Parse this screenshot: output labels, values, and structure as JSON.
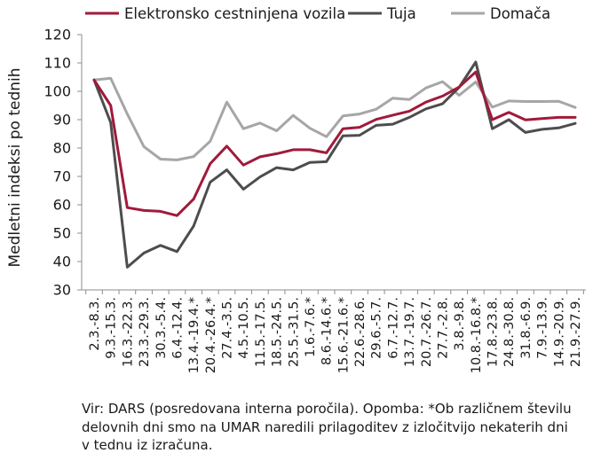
{
  "chart_data": {
    "type": "line",
    "ylabel": "Medletni indeksi po tednih",
    "xlabel": "",
    "ylim": [
      30,
      120
    ],
    "yticks": [
      30,
      40,
      50,
      60,
      70,
      80,
      90,
      100,
      110,
      120
    ],
    "grid": false,
    "legend_position": "top",
    "categories": [
      "2.3.-8.3.",
      "9.3.-15.3.",
      "16.3.-22.3.",
      "23.3.-29.3.",
      "30.3.-5.4.",
      "6.4.-12.4.",
      "13.4.-19.4.*",
      "20.4.-26.4.*",
      "27.4.-3.5.",
      "4.5.-10.5.",
      "11.5.-17.5.",
      "18.5.-24.5.",
      "25.5.-31.5.",
      "1.6.-7.6.*",
      "8.6.-14.6.*",
      "15.6.-21.6.*",
      "22.6.-28.6.",
      "29.6.-5.7.",
      "6.7.-12.7.",
      "13.7.-19.7.",
      "20.7.-26.7.",
      "27.7.-2.8.",
      "3.8.-9.8.",
      "10.8.-16.8.*",
      "17.8.-23.8.",
      "24.8.-30.8.",
      "31.8.-6.9.",
      "7.9.-13.9.",
      "14.9.-20.9.",
      "21.9.-27.9."
    ],
    "series": [
      {
        "name": "Elektronsko cestninjena vozila",
        "color": "#a01a3a",
        "values": [
          104,
          95,
          59,
          58,
          57.7,
          56.2,
          62,
          74.5,
          80.7,
          74,
          76.9,
          78,
          79.4,
          79.4,
          78.3,
          86.8,
          87.3,
          90.1,
          91.6,
          93,
          96.2,
          98.3,
          101.5,
          106.8,
          90,
          92.6,
          89.9,
          90.4,
          90.8,
          90.8
        ]
      },
      {
        "name": "Tuja",
        "color": "#4d4d4d",
        "values": [
          104,
          89,
          38,
          43,
          45.7,
          43.5,
          52.5,
          68,
          72.3,
          65.5,
          69.8,
          73.1,
          72.3,
          74.9,
          75.2,
          84.3,
          84.5,
          88,
          88.4,
          90.8,
          93.8,
          95.6,
          101.4,
          110.3,
          86.8,
          90,
          85.5,
          86.6,
          87.1,
          88.7
        ]
      },
      {
        "name": "Domača",
        "color": "#a6a6a6",
        "values": [
          104,
          104.6,
          92,
          80.5,
          76.1,
          75.8,
          77,
          82.4,
          96.2,
          86.8,
          88.8,
          86.1,
          91.5,
          87,
          84,
          91.3,
          92,
          93.7,
          97.6,
          97.1,
          101.2,
          103.4,
          98.6,
          103.3,
          94.4,
          96.6,
          96.4,
          96.4,
          96.5,
          94.3
        ]
      }
    ]
  },
  "source_note": "Vir: DARS (posredovana interna poročila). Opomba: *Ob različnem številu delovnih dni smo na UMAR naredili prilagoditev z izločitvijo nekaterih dni v tednu iz izračuna."
}
